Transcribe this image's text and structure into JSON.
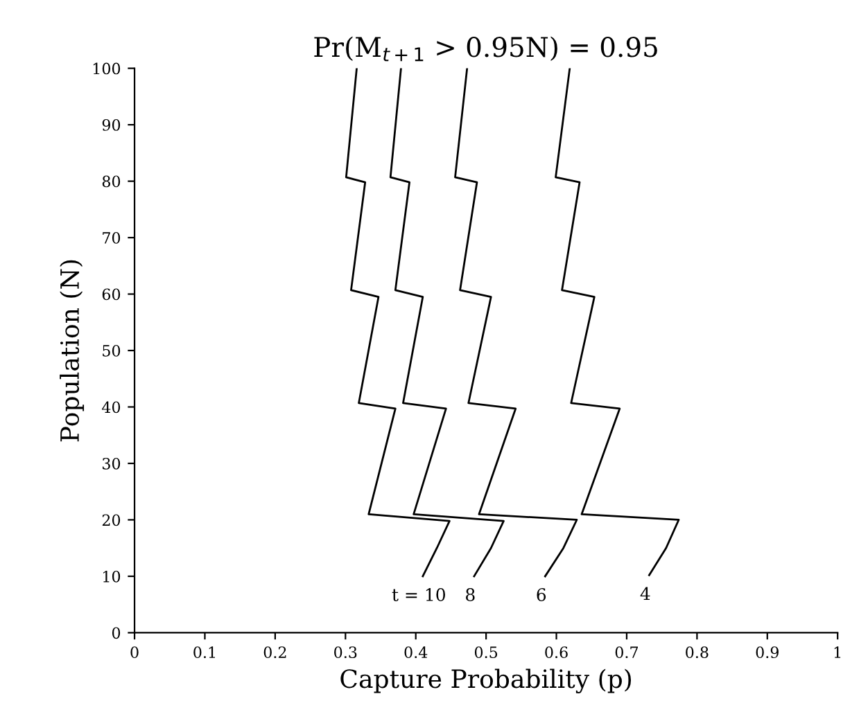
{
  "chart_data": {
    "type": "line",
    "title": "Pr(M$_{t+1}$ > 0.95N) = 0.95",
    "xlabel": "Capture Probability (p)",
    "ylabel": "Population (N)",
    "series": [
      {
        "name": "t = 10",
        "color": "#000000",
        "x": [
          0.316,
          0.301,
          0.328,
          0.308,
          0.347,
          0.319,
          0.371,
          0.333,
          0.448,
          0.43,
          0.41
        ],
        "values": [
          100,
          80.7,
          79.8,
          60.7,
          59.5,
          40.7,
          39.7,
          21,
          19.8,
          15,
          10
        ]
      },
      {
        "name": "8",
        "color": "#000000",
        "x": [
          0.379,
          0.364,
          0.391,
          0.371,
          0.41,
          0.382,
          0.443,
          0.397,
          0.525,
          0.507,
          0.483
        ],
        "values": [
          100,
          80.7,
          79.8,
          60.7,
          59.5,
          40.7,
          39.7,
          21,
          19.8,
          15,
          10
        ]
      },
      {
        "name": "6",
        "color": "#000000",
        "x": [
          0.473,
          0.456,
          0.487,
          0.463,
          0.507,
          0.475,
          0.542,
          0.49,
          0.629,
          0.61,
          0.584
        ],
        "values": [
          100,
          80.7,
          79.8,
          60.7,
          59.5,
          40.7,
          39.7,
          21,
          20,
          15,
          10
        ]
      },
      {
        "name": "4",
        "color": "#000000",
        "x": [
          0.619,
          0.599,
          0.633,
          0.608,
          0.654,
          0.621,
          0.69,
          0.636,
          0.774,
          0.756,
          0.732
        ],
        "values": [
          100,
          80.7,
          79.8,
          60.7,
          59.5,
          40.7,
          39.7,
          21,
          20,
          15,
          10.2
        ]
      }
    ],
    "xlim": [
      0,
      1
    ],
    "ylim": [
      0,
      100
    ],
    "xticks": [
      0,
      0.1,
      0.2,
      0.3,
      0.4,
      0.5,
      0.6,
      0.7,
      0.8,
      0.9,
      1
    ],
    "yticks": [
      0,
      10,
      20,
      30,
      40,
      50,
      60,
      70,
      80,
      90,
      100
    ],
    "grid": false,
    "legend": false,
    "marker": "none",
    "line_style": "solid"
  }
}
